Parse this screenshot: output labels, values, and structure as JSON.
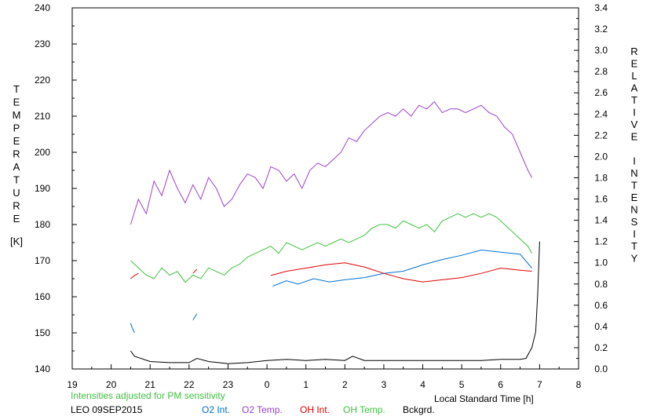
{
  "chart_data": {
    "type": "line",
    "left_axis": {
      "label": "TEMPERATURE",
      "unit": "[K]",
      "range": [
        140,
        240
      ],
      "ticks": [
        "240",
        "230",
        "220",
        "210",
        "200",
        "190",
        "180",
        "170",
        "160",
        "150",
        "140"
      ]
    },
    "right_axis": {
      "label": "RELATIVE INTENSITY",
      "range": [
        0,
        3.4
      ],
      "ticks": [
        "3.4",
        "3.2",
        "3.0",
        "2.8",
        "2.6",
        "2.4",
        "2.2",
        "2.0",
        "1.8",
        "1.6",
        "1.4",
        "1.2",
        "1.0",
        "0.8",
        "0.6",
        "0.4",
        "0.2",
        "0.0"
      ]
    },
    "x_axis": {
      "label": "Local Standard Time [h]",
      "ticks": [
        "19",
        "20",
        "21",
        "22",
        "23",
        "0",
        "1",
        "2",
        "3",
        "4",
        "5",
        "6",
        "7",
        "8"
      ]
    },
    "note": "Intensities adjusted for PM sensitivity",
    "station": "LEO 09SEP2015",
    "colors": {
      "o2_int": "#0070d0",
      "o2_temp": "#9a40d0",
      "oh_int": "#e00000",
      "oh_temp": "#40c040",
      "bckgrd": "#000000",
      "note": "#40c040"
    },
    "series": [
      {
        "name": "O2 Int.",
        "axis": "right",
        "segments": [
          [
            [
              20.5,
              0.43
            ],
            [
              20.55,
              0.38
            ],
            [
              20.6,
              0.34
            ]
          ],
          [
            [
              22.1,
              0.46
            ],
            [
              22.2,
              0.52
            ]
          ],
          [
            [
              24.15,
              0.78
            ],
            [
              24.5,
              0.83
            ],
            [
              24.8,
              0.8
            ],
            [
              25.2,
              0.85
            ],
            [
              25.6,
              0.82
            ],
            [
              26,
              0.84
            ],
            [
              26.5,
              0.86
            ],
            [
              27,
              0.9
            ],
            [
              27.5,
              0.92
            ],
            [
              28,
              0.98
            ],
            [
              28.5,
              1.03
            ],
            [
              29,
              1.07
            ],
            [
              29.5,
              1.12
            ],
            [
              30,
              1.1
            ],
            [
              30.5,
              1.08
            ],
            [
              30.8,
              0.95
            ]
          ]
        ]
      },
      {
        "name": "O2 Temp.",
        "axis": "left",
        "segments": [
          [
            [
              20.5,
              180
            ],
            [
              20.7,
              187
            ],
            [
              20.9,
              183
            ],
            [
              21.1,
              192
            ],
            [
              21.3,
              188
            ],
            [
              21.5,
              195
            ],
            [
              21.7,
              190
            ],
            [
              21.9,
              186
            ],
            [
              22.1,
              191
            ],
            [
              22.3,
              187
            ],
            [
              22.5,
              193
            ],
            [
              22.7,
              190
            ],
            [
              22.9,
              185
            ],
            [
              23.1,
              187
            ],
            [
              23.3,
              191
            ],
            [
              23.5,
              194
            ],
            [
              23.7,
              193
            ],
            [
              23.9,
              190
            ],
            [
              24.1,
              196
            ],
            [
              24.3,
              195
            ],
            [
              24.5,
              192
            ],
            [
              24.7,
              194
            ],
            [
              24.9,
              190
            ],
            [
              25.1,
              195
            ],
            [
              25.3,
              197
            ],
            [
              25.5,
              196
            ],
            [
              25.7,
              198
            ],
            [
              25.9,
              200
            ],
            [
              26.1,
              204
            ],
            [
              26.3,
              203
            ],
            [
              26.5,
              206
            ],
            [
              26.7,
              208
            ],
            [
              26.9,
              210
            ],
            [
              27.1,
              211
            ],
            [
              27.3,
              210
            ],
            [
              27.5,
              212
            ],
            [
              27.7,
              210
            ],
            [
              27.9,
              213
            ],
            [
              28.1,
              212
            ],
            [
              28.3,
              214
            ],
            [
              28.5,
              211
            ],
            [
              28.7,
              212
            ],
            [
              28.9,
              212
            ],
            [
              29.1,
              211
            ],
            [
              29.3,
              212
            ],
            [
              29.5,
              213
            ],
            [
              29.7,
              211
            ],
            [
              29.9,
              210
            ],
            [
              30.1,
              207
            ],
            [
              30.3,
              205
            ],
            [
              30.5,
              200
            ],
            [
              30.7,
              195
            ],
            [
              30.8,
              193
            ]
          ]
        ]
      },
      {
        "name": "OH Int.",
        "axis": "right",
        "segments": [
          [
            [
              20.5,
              0.85
            ],
            [
              20.6,
              0.88
            ],
            [
              20.7,
              0.9
            ]
          ],
          [
            [
              22.1,
              0.9
            ],
            [
              22.2,
              0.94
            ]
          ],
          [
            [
              24.1,
              0.88
            ],
            [
              24.5,
              0.92
            ],
            [
              25,
              0.95
            ],
            [
              25.5,
              0.98
            ],
            [
              26,
              1.0
            ],
            [
              26.5,
              0.96
            ],
            [
              27,
              0.9
            ],
            [
              27.5,
              0.85
            ],
            [
              28,
              0.82
            ],
            [
              28.5,
              0.84
            ],
            [
              29,
              0.86
            ],
            [
              29.5,
              0.9
            ],
            [
              30,
              0.95
            ],
            [
              30.5,
              0.93
            ],
            [
              30.8,
              0.92
            ]
          ]
        ]
      },
      {
        "name": "OH Temp.",
        "axis": "left",
        "segments": [
          [
            [
              20.5,
              170
            ],
            [
              20.7,
              168
            ],
            [
              20.9,
              166
            ],
            [
              21.1,
              165
            ],
            [
              21.3,
              168
            ],
            [
              21.5,
              166
            ],
            [
              21.7,
              167
            ],
            [
              21.9,
              164
            ],
            [
              22.1,
              166
            ],
            [
              22.3,
              165
            ],
            [
              22.5,
              168
            ],
            [
              22.7,
              167
            ],
            [
              22.9,
              166
            ],
            [
              23.1,
              168
            ],
            [
              23.3,
              169
            ],
            [
              23.5,
              171
            ],
            [
              23.7,
              172
            ],
            [
              23.9,
              173
            ],
            [
              24.1,
              174
            ],
            [
              24.3,
              172
            ],
            [
              24.5,
              175
            ],
            [
              24.7,
              174
            ],
            [
              24.9,
              173
            ],
            [
              25.1,
              174
            ],
            [
              25.3,
              175
            ],
            [
              25.5,
              174
            ],
            [
              25.7,
              175
            ],
            [
              25.9,
              176
            ],
            [
              26.1,
              175
            ],
            [
              26.3,
              176
            ],
            [
              26.5,
              177
            ],
            [
              26.7,
              179
            ],
            [
              26.9,
              180
            ],
            [
              27.1,
              180
            ],
            [
              27.3,
              179
            ],
            [
              27.5,
              181
            ],
            [
              27.7,
              180
            ],
            [
              27.9,
              179
            ],
            [
              28.1,
              180
            ],
            [
              28.3,
              178
            ],
            [
              28.5,
              181
            ],
            [
              28.7,
              182
            ],
            [
              28.9,
              183
            ],
            [
              29.1,
              182
            ],
            [
              29.3,
              183
            ],
            [
              29.5,
              182
            ],
            [
              29.7,
              183
            ],
            [
              29.9,
              182
            ],
            [
              30.1,
              180
            ],
            [
              30.3,
              178
            ],
            [
              30.5,
              176
            ],
            [
              30.7,
              174
            ],
            [
              30.8,
              172
            ]
          ]
        ]
      },
      {
        "name": "Bckgrd.",
        "axis": "right",
        "segments": [
          [
            [
              20.5,
              0.17
            ],
            [
              20.6,
              0.12
            ],
            [
              21,
              0.07
            ],
            [
              21.5,
              0.06
            ],
            [
              22,
              0.06
            ],
            [
              22.2,
              0.1
            ],
            [
              22.5,
              0.07
            ],
            [
              23,
              0.05
            ],
            [
              23.5,
              0.06
            ],
            [
              24,
              0.08
            ],
            [
              24.5,
              0.09
            ],
            [
              25,
              0.08
            ],
            [
              25.5,
              0.09
            ],
            [
              26,
              0.08
            ],
            [
              26.2,
              0.12
            ],
            [
              26.5,
              0.08
            ],
            [
              27,
              0.08
            ],
            [
              27.5,
              0.08
            ],
            [
              28,
              0.08
            ],
            [
              28.5,
              0.08
            ],
            [
              29,
              0.08
            ],
            [
              29.5,
              0.08
            ],
            [
              30,
              0.09
            ],
            [
              30.5,
              0.09
            ],
            [
              30.65,
              0.1
            ],
            [
              30.8,
              0.2
            ],
            [
              30.9,
              0.35
            ],
            [
              30.95,
              0.7
            ],
            [
              31.0,
              1.2
            ]
          ]
        ]
      }
    ]
  }
}
